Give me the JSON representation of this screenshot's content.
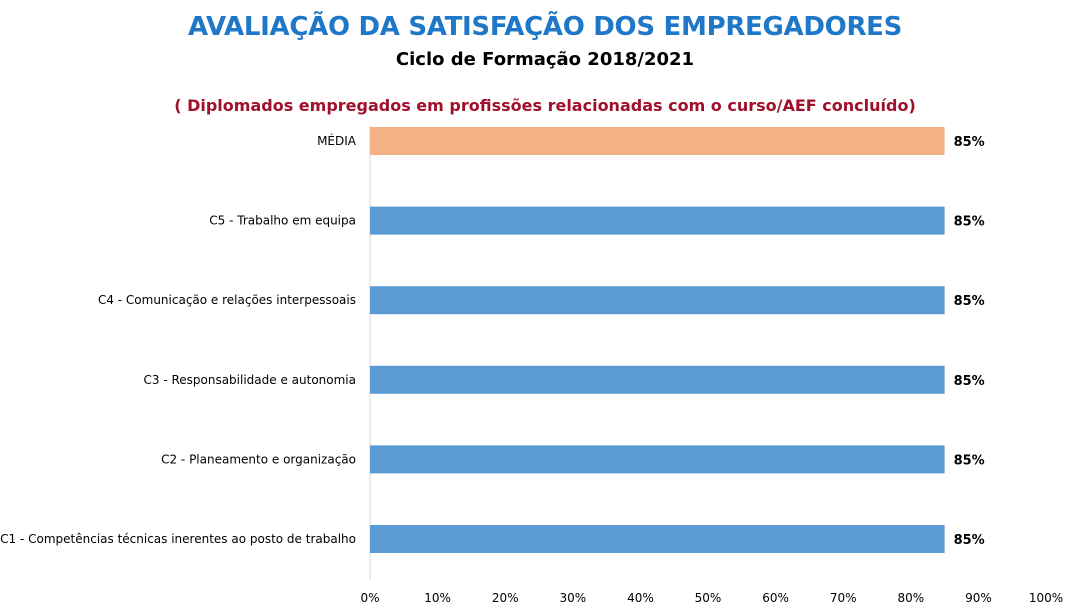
{
  "title": "AVALIAÇÃO DA SATISFAÇÃO DOS EMPREGADORES",
  "subtitle": "Ciclo de Formação 2018/2021",
  "note": "( Diplomados empregados em profissões relacionadas com o curso/AEF concluído)",
  "colors": {
    "title": "#1f77c8",
    "note": "#a0102a",
    "bar": "#5b9bd5",
    "highlight_bar": "#f4b183",
    "axis": "#d9d9d9"
  },
  "chart_data": {
    "type": "bar",
    "orientation": "horizontal",
    "categories": [
      "MÉDIA",
      "C5 - Trabalho em equipa",
      "C4 - Comunicação e relações interpessoais",
      "C3 - Responsabilidade e autonomia",
      "C2 - Planeamento e organização",
      "C1 - Competências técnicas inerentes ao posto de trabalho"
    ],
    "values": [
      85,
      85,
      85,
      85,
      85,
      85
    ],
    "data_labels": [
      "85%",
      "85%",
      "85%",
      "85%",
      "85%",
      "85%"
    ],
    "highlight_index": 0,
    "xlim": [
      0,
      100
    ],
    "xticks": [
      0,
      10,
      20,
      30,
      40,
      50,
      60,
      70,
      80,
      90,
      100
    ],
    "xtick_labels": [
      "0%",
      "10%",
      "20%",
      "30%",
      "40%",
      "50%",
      "60%",
      "70%",
      "80%",
      "90%",
      "100%"
    ],
    "grid": false,
    "legend": "none"
  }
}
